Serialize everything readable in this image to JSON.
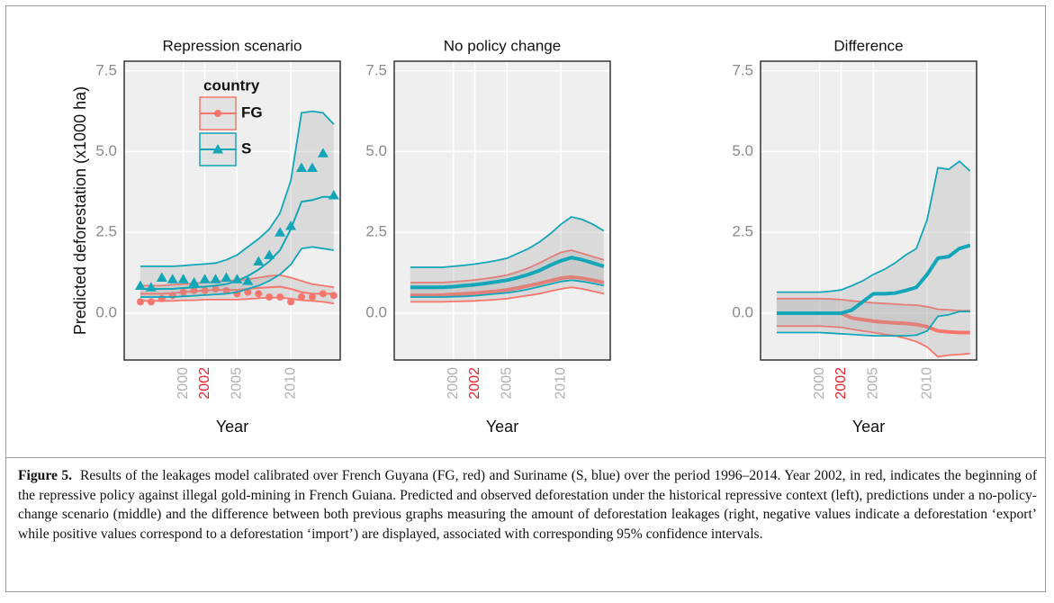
{
  "chart_data": [
    {
      "type": "line",
      "title": "Repression scenario",
      "xlabel": "Year",
      "ylabel": "Predicted deforestation (x1000 ha)",
      "x": [
        1996,
        1997,
        1998,
        1999,
        2000,
        2001,
        2002,
        2003,
        2004,
        2005,
        2006,
        2007,
        2008,
        2009,
        2010,
        2011,
        2012,
        2013,
        2014
      ],
      "xlim": [
        1994.5,
        2014.6
      ],
      "xticks": [
        2000,
        2002,
        2005,
        2010
      ],
      "xtick_colors": [
        "#b0b0b0",
        "#e8202a",
        "#b0b0b0",
        "#b0b0b0"
      ],
      "ylim": [
        -1.45,
        7.8
      ],
      "yticks": [
        {
          "value": 0,
          "label": "0.0"
        },
        2.5,
        {
          "value": 5,
          "label": "5.0"
        },
        7.5
      ],
      "grid": true,
      "line_width": 2,
      "legend": "top-left",
      "legend_title": "country",
      "series": [
        {
          "name": "FG",
          "color": "#f8766d",
          "marker": "circle",
          "values": [
            0.6,
            0.6,
            0.6,
            0.62,
            0.65,
            0.68,
            0.7,
            0.72,
            0.72,
            0.72,
            0.75,
            0.78,
            0.8,
            0.82,
            0.75,
            0.65,
            0.6,
            0.6,
            0.6
          ],
          "lower": [
            0.38,
            0.38,
            0.38,
            0.38,
            0.4,
            0.4,
            0.42,
            0.42,
            0.42,
            0.42,
            0.44,
            0.46,
            0.48,
            0.48,
            0.45,
            0.4,
            0.38,
            0.35,
            0.3
          ],
          "upper": [
            0.85,
            0.85,
            0.85,
            0.88,
            0.9,
            0.92,
            0.95,
            0.98,
            1.0,
            1.02,
            1.05,
            1.1,
            1.15,
            1.18,
            1.1,
            1.0,
            0.9,
            0.85,
            0.8
          ],
          "observed": [
            0.35,
            0.35,
            0.45,
            0.55,
            0.65,
            0.7,
            0.7,
            0.75,
            0.7,
            0.6,
            0.65,
            0.6,
            0.5,
            0.5,
            0.35,
            0.5,
            0.5,
            0.6,
            0.55
          ]
        },
        {
          "name": "S",
          "color": "#12a6b8",
          "marker": "triangle",
          "values": [
            0.75,
            0.75,
            0.75,
            0.75,
            0.78,
            0.8,
            0.82,
            0.85,
            0.9,
            1.0,
            1.15,
            1.35,
            1.6,
            1.95,
            2.6,
            3.45,
            3.5,
            3.6,
            3.6
          ],
          "lower": [
            0.5,
            0.5,
            0.5,
            0.5,
            0.52,
            0.54,
            0.56,
            0.58,
            0.6,
            0.65,
            0.75,
            0.85,
            1.0,
            1.2,
            1.5,
            2.0,
            2.05,
            2.0,
            1.95
          ],
          "upper": [
            1.45,
            1.45,
            1.45,
            1.45,
            1.47,
            1.5,
            1.52,
            1.55,
            1.65,
            1.8,
            2.05,
            2.3,
            2.6,
            3.1,
            4.1,
            6.2,
            6.25,
            6.2,
            5.85
          ],
          "observed": [
            0.85,
            0.8,
            1.1,
            1.05,
            1.05,
            0.95,
            1.05,
            1.05,
            1.1,
            1.05,
            1.0,
            1.6,
            1.8,
            2.5,
            2.7,
            4.5,
            4.5,
            4.95,
            3.65
          ]
        }
      ]
    },
    {
      "type": "line",
      "title": "No policy change",
      "xlabel": "Year",
      "x": [
        1996,
        1997,
        1998,
        1999,
        2000,
        2001,
        2002,
        2003,
        2004,
        2005,
        2006,
        2007,
        2008,
        2009,
        2010,
        2011,
        2012,
        2013,
        2014
      ],
      "xlim": [
        1994.5,
        2014.6
      ],
      "xticks": [
        2000,
        2002,
        2005,
        2010
      ],
      "xtick_colors": [
        "#b0b0b0",
        "#e8202a",
        "#b0b0b0",
        "#b0b0b0"
      ],
      "ylim": [
        -1.45,
        7.8
      ],
      "yticks": [
        {
          "value": 0,
          "label": "0.0"
        },
        2.5,
        {
          "value": 5,
          "label": "5.0"
        },
        7.5
      ],
      "grid": true,
      "line_width": 4,
      "series": [
        {
          "color": "#f8766d",
          "values": [
            0.55,
            0.55,
            0.55,
            0.56,
            0.58,
            0.6,
            0.62,
            0.65,
            0.68,
            0.72,
            0.78,
            0.85,
            0.92,
            1.0,
            1.08,
            1.12,
            1.08,
            1.02,
            0.95
          ],
          "lower": [
            0.35,
            0.35,
            0.35,
            0.35,
            0.36,
            0.37,
            0.38,
            0.4,
            0.42,
            0.45,
            0.5,
            0.55,
            0.6,
            0.68,
            0.75,
            0.8,
            0.75,
            0.68,
            0.6
          ],
          "upper": [
            0.95,
            0.95,
            0.95,
            0.95,
            0.97,
            1.0,
            1.03,
            1.07,
            1.12,
            1.18,
            1.28,
            1.4,
            1.55,
            1.72,
            1.88,
            1.95,
            1.85,
            1.75,
            1.65
          ]
        },
        {
          "color": "#12a6b8",
          "values": [
            0.8,
            0.8,
            0.8,
            0.8,
            0.82,
            0.85,
            0.88,
            0.92,
            0.97,
            1.02,
            1.1,
            1.2,
            1.32,
            1.48,
            1.62,
            1.72,
            1.65,
            1.55,
            1.45
          ],
          "lower": [
            0.5,
            0.5,
            0.5,
            0.5,
            0.51,
            0.52,
            0.54,
            0.57,
            0.6,
            0.63,
            0.68,
            0.74,
            0.82,
            0.9,
            0.98,
            1.02,
            0.98,
            0.92,
            0.85
          ],
          "upper": [
            1.42,
            1.42,
            1.42,
            1.42,
            1.45,
            1.48,
            1.52,
            1.57,
            1.63,
            1.7,
            1.85,
            2.0,
            2.2,
            2.45,
            2.75,
            2.98,
            2.9,
            2.75,
            2.55
          ]
        }
      ]
    },
    {
      "type": "line",
      "title": "Difference",
      "xlabel": "Year",
      "x": [
        1996,
        1997,
        1998,
        1999,
        2000,
        2001,
        2002,
        2003,
        2004,
        2005,
        2006,
        2007,
        2008,
        2009,
        2010,
        2011,
        2012,
        2013,
        2014
      ],
      "xlim": [
        1994.5,
        2014.6
      ],
      "xticks": [
        2000,
        2002,
        2005,
        2010
      ],
      "xtick_colors": [
        "#b0b0b0",
        "#e8202a",
        "#b0b0b0",
        "#b0b0b0"
      ],
      "ylim": [
        -1.45,
        7.8
      ],
      "yticks": [
        {
          "value": 0,
          "label": "0.0"
        },
        2.5,
        {
          "value": 5,
          "label": "5.0"
        },
        7.5
      ],
      "grid": true,
      "line_width": 4,
      "series": [
        {
          "color": "#f8766d",
          "values": [
            0,
            0,
            0,
            0,
            0,
            0,
            0,
            -0.15,
            -0.2,
            -0.25,
            -0.28,
            -0.3,
            -0.32,
            -0.35,
            -0.42,
            -0.55,
            -0.58,
            -0.6,
            -0.6
          ],
          "lower": [
            -0.4,
            -0.4,
            -0.4,
            -0.4,
            -0.4,
            -0.42,
            -0.44,
            -0.5,
            -0.55,
            -0.6,
            -0.65,
            -0.7,
            -0.78,
            -0.88,
            -1.05,
            -1.35,
            -1.3,
            -1.28,
            -1.25
          ],
          "upper": [
            0.45,
            0.45,
            0.45,
            0.45,
            0.45,
            0.44,
            0.42,
            0.38,
            0.35,
            0.32,
            0.3,
            0.28,
            0.26,
            0.25,
            0.2,
            0.12,
            0.1,
            0.08,
            0.08
          ]
        },
        {
          "color": "#12a6b8",
          "values": [
            0,
            0,
            0,
            0,
            0,
            0,
            0,
            0.1,
            0.35,
            0.6,
            0.6,
            0.62,
            0.7,
            0.8,
            1.2,
            1.7,
            1.75,
            2.0,
            2.1
          ],
          "lower": [
            -0.6,
            -0.6,
            -0.6,
            -0.6,
            -0.6,
            -0.62,
            -0.64,
            -0.66,
            -0.68,
            -0.7,
            -0.7,
            -0.7,
            -0.7,
            -0.68,
            -0.55,
            -0.1,
            -0.05,
            0.05,
            0.05
          ],
          "upper": [
            0.65,
            0.65,
            0.65,
            0.65,
            0.65,
            0.68,
            0.72,
            0.85,
            1.0,
            1.2,
            1.35,
            1.55,
            1.8,
            2.0,
            2.9,
            4.5,
            4.45,
            4.7,
            4.4
          ]
        }
      ]
    }
  ],
  "caption": {
    "label": "Figure 5.",
    "text": "Results of the leakages model calibrated over French Guyana (FG, red) and Suriname (S, blue) over the period 1996–2014. Year 2002, in red, indicates the beginning of the repressive policy against illegal gold-mining in French Guiana. Predicted and observed deforestation under the historical repressive context (left), predictions under a no-policy-change scenario (middle) and the difference between both previous graphs measuring the amount of deforestation leakages (right, negative values indicate a deforestation ‘export’ while positive values correspond to a deforestation ‘import’) are displayed, associated with corresponding 95% confidence intervals."
  }
}
